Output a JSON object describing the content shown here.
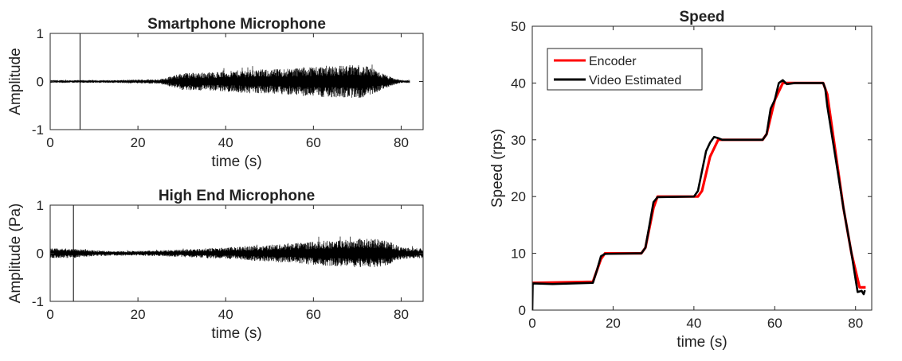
{
  "chart_data": [
    {
      "id": "smartphone",
      "type": "line",
      "title": "Smartphone Microphone",
      "xlabel": "time (s)",
      "ylabel": "Amplitude",
      "xlim": [
        0,
        85
      ],
      "ylim": [
        -1,
        1
      ],
      "xticks": [
        0,
        20,
        40,
        60,
        80
      ],
      "yticks": [
        -1,
        0,
        1
      ],
      "grid": false,
      "series": [
        {
          "color": "#000000",
          "description": "audio waveform",
          "envelope_time": [
            0,
            6,
            7,
            10,
            15,
            20,
            25,
            28,
            30,
            35,
            40,
            45,
            50,
            55,
            60,
            65,
            70,
            72,
            75,
            78,
            80,
            82
          ],
          "envelope_amplitude": [
            0.03,
            0.03,
            0.03,
            0.03,
            0.03,
            0.04,
            0.05,
            0.12,
            0.18,
            0.19,
            0.21,
            0.25,
            0.25,
            0.28,
            0.32,
            0.33,
            0.35,
            0.32,
            0.2,
            0.08,
            0.03,
            0.03
          ],
          "spikes": [
            {
              "t": 6.8,
              "min": -1,
              "max": 1
            }
          ]
        }
      ]
    },
    {
      "id": "highend",
      "type": "line",
      "title": "High End Microphone",
      "xlabel": "time (s)",
      "ylabel": "Amplitude (Pa)",
      "xlim": [
        0,
        85
      ],
      "ylim": [
        -1,
        1
      ],
      "xticks": [
        0,
        20,
        40,
        60,
        80
      ],
      "yticks": [
        -1,
        0,
        1
      ],
      "grid": false,
      "series": [
        {
          "color": "#000000",
          "description": "audio waveform",
          "envelope_time": [
            0,
            5,
            10,
            15,
            20,
            25,
            30,
            35,
            40,
            45,
            50,
            55,
            60,
            65,
            70,
            75,
            78,
            80,
            85
          ],
          "envelope_amplitude": [
            0.1,
            0.1,
            0.06,
            0.05,
            0.05,
            0.06,
            0.08,
            0.1,
            0.12,
            0.15,
            0.18,
            0.2,
            0.25,
            0.27,
            0.3,
            0.3,
            0.22,
            0.12,
            0.1
          ],
          "spikes": [
            {
              "t": 5.3,
              "min": -1,
              "max": 1
            }
          ]
        }
      ]
    },
    {
      "id": "speed",
      "type": "line",
      "title": "Speed",
      "xlabel": "time (s)",
      "ylabel": "Speed (rps)",
      "xlim": [
        0,
        84
      ],
      "ylim": [
        0,
        50
      ],
      "xticks": [
        0,
        20,
        40,
        60,
        80
      ],
      "yticks": [
        0,
        10,
        20,
        30,
        40,
        50
      ],
      "grid": false,
      "legend_position": "top-left",
      "series": [
        {
          "name": "Encoder",
          "color": "#ff0000",
          "x": [
            0,
            0.2,
            15,
            17,
            18,
            27,
            28,
            30,
            31,
            41,
            42,
            44,
            46,
            57,
            58,
            60,
            62,
            72,
            73,
            75,
            77,
            79,
            81,
            82.5
          ],
          "y": [
            4.8,
            4.8,
            5,
            9,
            10,
            10,
            11,
            18,
            20,
            20,
            21,
            27,
            30,
            30,
            31,
            37,
            40,
            40,
            38,
            28,
            18,
            10,
            4,
            4
          ]
        },
        {
          "name": "Video Estimated",
          "color": "#000000",
          "x": [
            0,
            0.1,
            0.3,
            5,
            10,
            15,
            16,
            17,
            18,
            27,
            28,
            29,
            30,
            31,
            40,
            41,
            42,
            43,
            44,
            45,
            46,
            47,
            48,
            57,
            58,
            59,
            60,
            61,
            62,
            63,
            65,
            72,
            72.5,
            73,
            75,
            77,
            79,
            80.5,
            81.5,
            82,
            82.3
          ],
          "y": [
            0,
            4.5,
            4.7,
            4.6,
            4.7,
            4.8,
            7,
            9.5,
            9.9,
            10,
            11,
            15,
            19,
            19.9,
            20,
            21,
            24.5,
            28,
            29.5,
            30.5,
            30.3,
            30,
            30,
            30,
            31,
            35.5,
            37,
            40,
            40.5,
            39.8,
            40,
            40,
            39,
            36,
            27,
            18,
            10,
            3.2,
            3.4,
            2.8,
            3.5
          ]
        }
      ]
    }
  ]
}
